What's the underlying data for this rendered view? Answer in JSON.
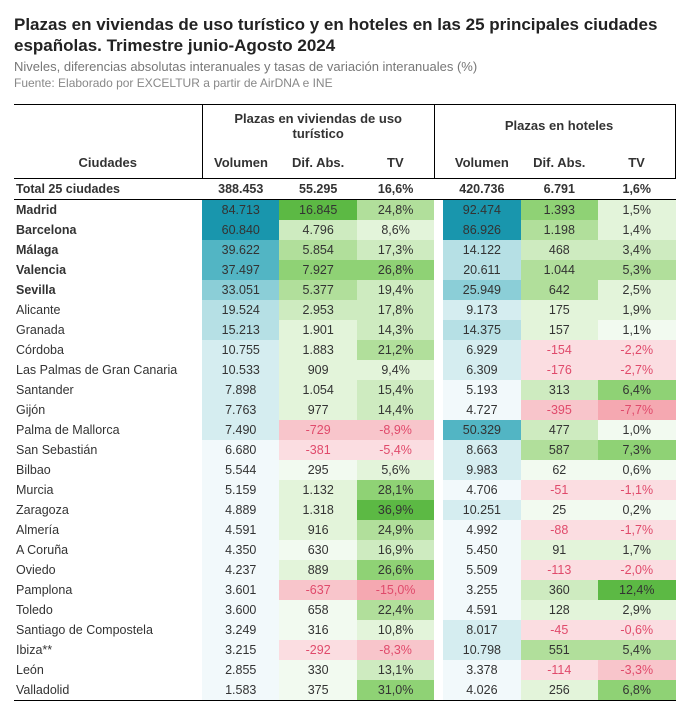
{
  "header": {
    "title": "Plazas en viviendas de uso turístico y en hoteles en las 25 principales ciudades españolas. Trimestre junio-Agosto 2024",
    "subtitle": "Niveles, diferencias absolutas interanuales y tasas de variación interanuales (%)",
    "source": "Fuente: Elaborado por EXCELTUR a partir de AirDNA e INE"
  },
  "table": {
    "type": "table",
    "group_headers": [
      "Plazas en viviendas de uso turístico",
      "Plazas en hoteles"
    ],
    "col_headers": {
      "cities": "Ciudades",
      "volumen": "Volumen",
      "dif": "Dif. Abs.",
      "tv": "TV"
    },
    "palette": {
      "vol_scale": [
        "#f2f9fb",
        "#d5edf0",
        "#b6e0e5",
        "#8bced7",
        "#52b5c4",
        "#1996ad"
      ],
      "pos_scale": [
        "#f2faf0",
        "#e3f4da",
        "#ceebc0",
        "#b1df9b",
        "#8fd275",
        "#5cb944"
      ],
      "neg_scale": [
        "#fdeef0",
        "#fbdde1",
        "#f8c5cb",
        "#f5a8b1"
      ],
      "text_neg": "#e04a6b",
      "text_pos": "#333333"
    },
    "total": {
      "city": "Total 25 ciudades",
      "v1": "388.453",
      "d1": "55.295",
      "t1": "16,6%",
      "v2": "420.736",
      "d2": "6.791",
      "t2": "1,6%"
    },
    "rows": [
      {
        "city": "Madrid",
        "bold": true,
        "v1": "84.713",
        "d1": "16.845",
        "t1": "24,8%",
        "v2": "92.474",
        "d2": "1.393",
        "t2": "1,5%",
        "c": {
          "v1": 5,
          "d1": 5,
          "t1": 3,
          "v2": 5,
          "d2": 4,
          "t2": 1
        }
      },
      {
        "city": "Barcelona",
        "bold": true,
        "v1": "60.840",
        "d1": "4.796",
        "t1": "8,6%",
        "v2": "86.926",
        "d2": "1.198",
        "t2": "1,4%",
        "c": {
          "v1": 5,
          "d1": 2,
          "t1": 1,
          "v2": 5,
          "d2": 3,
          "t2": 1
        }
      },
      {
        "city": "Málaga",
        "bold": true,
        "v1": "39.622",
        "d1": "5.854",
        "t1": "17,3%",
        "v2": "14.122",
        "d2": "468",
        "t2": "3,4%",
        "c": {
          "v1": 4,
          "d1": 3,
          "t1": 2,
          "v2": 2,
          "d2": 2,
          "t2": 2
        }
      },
      {
        "city": "Valencia",
        "bold": true,
        "v1": "37.497",
        "d1": "7.927",
        "t1": "26,8%",
        "v2": "20.611",
        "d2": "1.044",
        "t2": "5,3%",
        "c": {
          "v1": 4,
          "d1": 4,
          "t1": 4,
          "v2": 2,
          "d2": 3,
          "t2": 3
        }
      },
      {
        "city": "Sevilla",
        "bold": true,
        "v1": "33.051",
        "d1": "5.377",
        "t1": "19,4%",
        "v2": "25.949",
        "d2": "642",
        "t2": "2,5%",
        "c": {
          "v1": 3,
          "d1": 3,
          "t1": 2,
          "v2": 3,
          "d2": 3,
          "t2": 1
        }
      },
      {
        "city": "Alicante",
        "v1": "19.524",
        "d1": "2.953",
        "t1": "17,8%",
        "v2": "9.173",
        "d2": "175",
        "t2": "1,9%",
        "c": {
          "v1": 2,
          "d1": 2,
          "t1": 2,
          "v2": 1,
          "d2": 1,
          "t2": 1
        }
      },
      {
        "city": "Granada",
        "v1": "15.213",
        "d1": "1.901",
        "t1": "14,3%",
        "v2": "14.375",
        "d2": "157",
        "t2": "1,1%",
        "c": {
          "v1": 2,
          "d1": 1,
          "t1": 2,
          "v2": 2,
          "d2": 1,
          "t2": 0
        }
      },
      {
        "city": "Córdoba",
        "v1": "10.755",
        "d1": "1.883",
        "t1": "21,2%",
        "v2": "6.929",
        "d2": "-154",
        "t2": "-2,2%",
        "c": {
          "v1": 1,
          "d1": 1,
          "t1": 3,
          "v2": 1,
          "d2": -1,
          "t2": -1
        }
      },
      {
        "city": "Las Palmas de Gran Canaria",
        "v1": "10.533",
        "d1": "909",
        "t1": "9,4%",
        "v2": "6.309",
        "d2": "-176",
        "t2": "-2,7%",
        "c": {
          "v1": 1,
          "d1": 1,
          "t1": 1,
          "v2": 1,
          "d2": -1,
          "t2": -1
        }
      },
      {
        "city": "Santander",
        "v1": "7.898",
        "d1": "1.054",
        "t1": "15,4%",
        "v2": "5.193",
        "d2": "313",
        "t2": "6,4%",
        "c": {
          "v1": 1,
          "d1": 1,
          "t1": 2,
          "v2": 0,
          "d2": 2,
          "t2": 4
        }
      },
      {
        "city": "Gijón",
        "v1": "7.763",
        "d1": "977",
        "t1": "14,4%",
        "v2": "4.727",
        "d2": "-395",
        "t2": "-7,7%",
        "c": {
          "v1": 1,
          "d1": 1,
          "t1": 2,
          "v2": 0,
          "d2": -2,
          "t2": -3
        }
      },
      {
        "city": "Palma de Mallorca",
        "v1": "7.490",
        "d1": "-729",
        "t1": "-8,9%",
        "v2": "50.329",
        "d2": "477",
        "t2": "1,0%",
        "c": {
          "v1": 1,
          "d1": -2,
          "t1": -2,
          "v2": 4,
          "d2": 2,
          "t2": 0
        }
      },
      {
        "city": "San Sebastián",
        "v1": "6.680",
        "d1": "-381",
        "t1": "-5,4%",
        "v2": "8.663",
        "d2": "587",
        "t2": "7,3%",
        "c": {
          "v1": 0,
          "d1": -1,
          "t1": -1,
          "v2": 1,
          "d2": 3,
          "t2": 4
        }
      },
      {
        "city": "Bilbao",
        "v1": "5.544",
        "d1": "295",
        "t1": "5,6%",
        "v2": "9.983",
        "d2": "62",
        "t2": "0,6%",
        "c": {
          "v1": 0,
          "d1": 0,
          "t1": 1,
          "v2": 1,
          "d2": 0,
          "t2": 0
        }
      },
      {
        "city": "Murcia",
        "v1": "5.159",
        "d1": "1.132",
        "t1": "28,1%",
        "v2": "4.706",
        "d2": "-51",
        "t2": "-1,1%",
        "c": {
          "v1": 0,
          "d1": 1,
          "t1": 4,
          "v2": 0,
          "d2": -1,
          "t2": -1
        }
      },
      {
        "city": "Zaragoza",
        "v1": "4.889",
        "d1": "1.318",
        "t1": "36,9%",
        "v2": "10.251",
        "d2": "25",
        "t2": "0,2%",
        "c": {
          "v1": 0,
          "d1": 1,
          "t1": 5,
          "v2": 1,
          "d2": 0,
          "t2": 0
        }
      },
      {
        "city": "Almería",
        "v1": "4.591",
        "d1": "916",
        "t1": "24,9%",
        "v2": "4.992",
        "d2": "-88",
        "t2": "-1,7%",
        "c": {
          "v1": 0,
          "d1": 1,
          "t1": 3,
          "v2": 0,
          "d2": -1,
          "t2": -1
        }
      },
      {
        "city": "A Coruña",
        "v1": "4.350",
        "d1": "630",
        "t1": "16,9%",
        "v2": "5.450",
        "d2": "91",
        "t2": "1,7%",
        "c": {
          "v1": 0,
          "d1": 0,
          "t1": 2,
          "v2": 0,
          "d2": 1,
          "t2": 1
        }
      },
      {
        "city": "Oviedo",
        "v1": "4.237",
        "d1": "889",
        "t1": "26,6%",
        "v2": "5.509",
        "d2": "-113",
        "t2": "-2,0%",
        "c": {
          "v1": 0,
          "d1": 1,
          "t1": 4,
          "v2": 0,
          "d2": -1,
          "t2": -1
        }
      },
      {
        "city": "Pamplona",
        "v1": "3.601",
        "d1": "-637",
        "t1": "-15,0%",
        "v2": "3.255",
        "d2": "360",
        "t2": "12,4%",
        "c": {
          "v1": 0,
          "d1": -2,
          "t1": -3,
          "v2": 0,
          "d2": 2,
          "t2": 5
        }
      },
      {
        "city": "Toledo",
        "v1": "3.600",
        "d1": "658",
        "t1": "22,4%",
        "v2": "4.591",
        "d2": "128",
        "t2": "2,9%",
        "c": {
          "v1": 0,
          "d1": 0,
          "t1": 3,
          "v2": 0,
          "d2": 1,
          "t2": 1
        }
      },
      {
        "city": "Santiago de Compostela",
        "v1": "3.249",
        "d1": "316",
        "t1": "10,8%",
        "v2": "8.017",
        "d2": "-45",
        "t2": "-0,6%",
        "c": {
          "v1": 0,
          "d1": 0,
          "t1": 1,
          "v2": 1,
          "d2": -1,
          "t2": -1
        }
      },
      {
        "city": "Ibiza**",
        "v1": "3.215",
        "d1": "-292",
        "t1": "-8,3%",
        "v2": "10.798",
        "d2": "551",
        "t2": "5,4%",
        "c": {
          "v1": 0,
          "d1": -1,
          "t1": -2,
          "v2": 1,
          "d2": 3,
          "t2": 3
        }
      },
      {
        "city": "León",
        "v1": "2.855",
        "d1": "330",
        "t1": "13,1%",
        "v2": "3.378",
        "d2": "-114",
        "t2": "-3,3%",
        "c": {
          "v1": 0,
          "d1": 0,
          "t1": 2,
          "v2": 0,
          "d2": -1,
          "t2": -2
        }
      },
      {
        "city": "Valladolid",
        "v1": "1.583",
        "d1": "375",
        "t1": "31,0%",
        "v2": "4.026",
        "d2": "256",
        "t2": "6,8%",
        "c": {
          "v1": 0,
          "d1": 0,
          "t1": 4,
          "v2": 0,
          "d2": 1,
          "t2": 4
        }
      }
    ]
  }
}
